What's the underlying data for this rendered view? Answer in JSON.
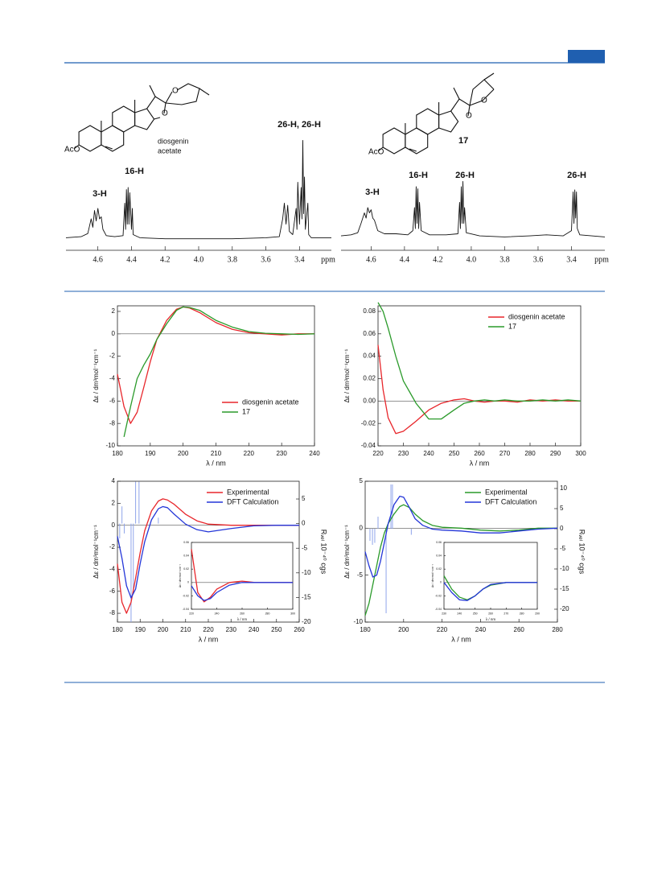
{
  "structures": [
    {
      "atoms": [
        "AcO",
        "O",
        "O"
      ],
      "name_lines": [
        "diosgenin",
        "acetate"
      ]
    },
    {
      "atoms": [
        "AcO",
        "O",
        "O"
      ],
      "name": "17"
    }
  ],
  "chart_data": [
    {
      "type": "line",
      "x_label": "ppm",
      "xlim": [
        4.79,
        3.21
      ],
      "ylim": [
        0,
        1
      ],
      "xticks": [
        4.6,
        4.4,
        4.2,
        {
          "value": 4,
          "label": "4.0"
        },
        3.8,
        3.6,
        3.4
      ],
      "annotations": [
        "3-H",
        "16-H",
        "26-H, 26-H"
      ],
      "x": [
        4.79,
        4.7,
        4.66,
        4.64,
        4.63,
        4.62,
        4.61,
        4.6,
        4.59,
        4.58,
        4.57,
        4.55,
        4.5,
        4.45,
        4.44,
        4.435,
        4.43,
        4.425,
        4.42,
        4.415,
        4.41,
        4.4,
        4.395,
        4.39,
        4.35,
        4.2,
        4.0,
        3.8,
        3.6,
        3.52,
        3.5,
        3.49,
        3.48,
        3.47,
        3.46,
        3.44,
        3.42,
        3.415,
        3.41,
        3.4,
        3.39,
        3.385,
        3.38,
        3.375,
        3.37,
        3.365,
        3.35,
        3.345,
        3.33,
        3.21
      ],
      "series": [
        {
          "color": "#111111",
          "values": [
            0.02,
            0.03,
            0.06,
            0.2,
            0.12,
            0.28,
            0.18,
            0.3,
            0.2,
            0.22,
            0.1,
            0.04,
            0.03,
            0.04,
            0.35,
            0.1,
            0.48,
            0.15,
            0.5,
            0.15,
            0.45,
            0.1,
            0.3,
            0.05,
            0.02,
            0.01,
            0.01,
            0.01,
            0.02,
            0.03,
            0.2,
            0.35,
            0.15,
            0.33,
            0.08,
            0.05,
            0.3,
            0.1,
            0.55,
            0.15,
            0.5,
            0.2,
            0.95,
            0.25,
            0.6,
            0.1,
            0.35,
            0.05,
            0.02,
            0.02
          ]
        }
      ]
    },
    {
      "type": "line",
      "x_label": "ppm",
      "xlim": [
        4.78,
        3.2
      ],
      "ylim": [
        0,
        1
      ],
      "xticks": [
        4.6,
        4.4,
        4.2,
        {
          "value": 4,
          "label": "4.0"
        },
        3.8,
        3.6,
        3.4
      ],
      "annotations": [
        "3-H",
        "16-H",
        "26-H",
        "26-H"
      ],
      "x": [
        4.78,
        4.72,
        4.68,
        4.66,
        4.64,
        4.63,
        4.62,
        4.61,
        4.6,
        4.59,
        4.58,
        4.56,
        4.52,
        4.45,
        4.38,
        4.35,
        4.34,
        4.335,
        4.33,
        4.325,
        4.32,
        4.315,
        4.31,
        4.3,
        4.25,
        4.15,
        4.08,
        4.07,
        4.065,
        4.06,
        4.055,
        4.05,
        4.045,
        4.04,
        4.03,
        3.95,
        3.8,
        3.65,
        3.55,
        3.45,
        3.4,
        3.39,
        3.385,
        3.38,
        3.375,
        3.37,
        3.365,
        3.35,
        3.2
      ],
      "series": [
        {
          "color": "#111111",
          "values": [
            0.03,
            0.04,
            0.06,
            0.15,
            0.25,
            0.2,
            0.3,
            0.25,
            0.28,
            0.2,
            0.18,
            0.08,
            0.05,
            0.05,
            0.04,
            0.08,
            0.3,
            0.1,
            0.5,
            0.15,
            0.48,
            0.1,
            0.35,
            0.08,
            0.04,
            0.04,
            0.05,
            0.35,
            0.1,
            0.5,
            0.15,
            0.55,
            0.15,
            0.3,
            0.06,
            0.03,
            0.02,
            0.03,
            0.04,
            0.03,
            0.08,
            0.45,
            0.15,
            0.47,
            0.2,
            0.45,
            0.1,
            0.04,
            0.02
          ]
        }
      ]
    },
    {
      "type": "line",
      "frame": true,
      "zero_line": true,
      "legend": "lower right",
      "x_label": "λ / nm",
      "y_label": "Δε / dm³mol⁻¹cm⁻¹",
      "xlim": [
        180,
        240
      ],
      "xticks": [
        180,
        190,
        200,
        210,
        220,
        230,
        240
      ],
      "ylim": [
        -10,
        2.5
      ],
      "yticks": [
        -10,
        -8,
        -6,
        -4,
        -2,
        0,
        2
      ],
      "x": [
        180,
        182,
        184,
        186,
        188,
        190,
        192,
        195,
        198,
        200,
        202,
        205,
        210,
        215,
        220,
        225,
        230,
        235,
        240
      ],
      "series": [
        {
          "name": "diosgenin acetate",
          "color": "#e8262b",
          "values": [
            -3.6,
            -6.5,
            -8,
            -7,
            -4.8,
            -2.5,
            -0.5,
            1.2,
            2.2,
            2.4,
            2.3,
            1.9,
            1.0,
            0.4,
            0.1,
            0,
            -0.1,
            0,
            0
          ]
        },
        {
          "name": "17",
          "color": "#2a9a2a",
          "values": [
            null,
            -9.2,
            -6.5,
            -4,
            -2.8,
            -1.8,
            -0.5,
            0.9,
            2.1,
            2.4,
            2.35,
            2.1,
            1.2,
            0.6,
            0.2,
            0.05,
            0,
            -0.05,
            0
          ]
        }
      ]
    },
    {
      "type": "line",
      "frame": true,
      "zero_line": true,
      "legend": "upper right",
      "x_label": "λ / nm",
      "y_label": "Δε / dm³mol⁻¹cm⁻¹",
      "xlim": [
        220,
        300
      ],
      "xticks": [
        220,
        230,
        240,
        250,
        260,
        270,
        280,
        290,
        300
      ],
      "ylim": [
        -0.04,
        0.085
      ],
      "yticks": [
        -0.04,
        -0.02,
        {
          "value": 0,
          "label": "0.00"
        },
        0.02,
        0.04,
        0.06,
        0.08
      ],
      "x": [
        220,
        222,
        224,
        227,
        230,
        235,
        240,
        245,
        250,
        254,
        258,
        262,
        266,
        270,
        275,
        280,
        285,
        290,
        295,
        300
      ],
      "series": [
        {
          "name": "diosgenin acetate",
          "color": "#e8262b",
          "values": [
            0.05,
            0.01,
            -0.015,
            -0.029,
            -0.027,
            -0.018,
            -0.008,
            -0.002,
            0.001,
            0.002,
            0,
            -0.001,
            0,
            0,
            -0.001,
            0.001,
            0,
            0.001,
            0,
            0
          ]
        },
        {
          "name": "17",
          "color": "#2a9a2a",
          "values": [
            0.088,
            0.08,
            0.065,
            0.04,
            0.018,
            -0.002,
            -0.016,
            -0.016,
            -0.008,
            -0.002,
            0,
            0.001,
            0,
            0.001,
            0,
            0,
            0.001,
            0,
            0.001,
            0
          ]
        }
      ]
    },
    {
      "type": "line",
      "frame": true,
      "zero_line": true,
      "legend": "upper right",
      "x_label": "λ / nm",
      "y_label": "Δε / dm³mol⁻¹cm⁻¹",
      "y2_label": "Rᵥₑₗ 10⁻⁴⁰ cgs",
      "xlim": [
        180,
        260
      ],
      "xticks": [
        180,
        190,
        200,
        210,
        220,
        230,
        240,
        250,
        260
      ],
      "ylim": [
        -8.8,
        4
      ],
      "yticks": [
        -8,
        -6,
        -4,
        -2,
        0,
        2,
        4
      ],
      "y2lim": [
        -20,
        8.6
      ],
      "y2ticks": [
        -20,
        -15,
        -10,
        -5,
        0,
        5
      ],
      "x": [
        180,
        182,
        184,
        186,
        188,
        190,
        192,
        195,
        198,
        200,
        202,
        205,
        210,
        215,
        220,
        230,
        240,
        250,
        260
      ],
      "series": [
        {
          "name": "Experimental",
          "color": "#e8262b",
          "values": [
            -3.5,
            -7,
            -8,
            -7,
            -4.8,
            -2.5,
            -0.5,
            1.3,
            2.2,
            2.4,
            2.3,
            1.9,
            1.0,
            0.4,
            0.1,
            0,
            0,
            0,
            0
          ]
        },
        {
          "name": "DFT Calculation",
          "color": "#2436d8",
          "values": [
            -1,
            -3,
            -5.5,
            -6.6,
            -5.8,
            -3.5,
            -1.5,
            0.5,
            1.5,
            1.7,
            1.6,
            1.0,
            0.1,
            -0.4,
            -0.6,
            -0.3,
            -0.05,
            0,
            0
          ]
        }
      ],
      "sticks": {
        "axis": "y2",
        "color": "#8fa4ea",
        "x": [
          181,
          182,
          183,
          186,
          187,
          188,
          189.5,
          198
        ],
        "values": [
          -3,
          3.5,
          -2,
          -20,
          -14,
          8.5,
          8.5,
          1.2
        ]
      },
      "inset": {
        "type": "line",
        "frame": true,
        "zero_line": true,
        "x_label": "λ / nm",
        "y_label": "Δε / dm³mol⁻¹cm⁻¹",
        "xlim": [
          220,
          300
        ],
        "xticks": [
          220,
          240,
          260,
          280,
          300
        ],
        "ylim": [
          -0.04,
          0.06
        ],
        "yticks": [
          -0.04,
          -0.02,
          0,
          0.02,
          0.04,
          0.06
        ],
        "x": [
          220,
          225,
          230,
          235,
          240,
          250,
          260,
          270,
          280,
          290,
          300
        ],
        "series": [
          {
            "color": "#e8262b",
            "values": [
              0.05,
              -0.015,
              -0.029,
              -0.022,
              -0.01,
              0,
              0.002,
              0,
              0,
              0,
              0
            ]
          },
          {
            "color": "#2436d8",
            "values": [
              -0.005,
              -0.02,
              -0.027,
              -0.024,
              -0.015,
              -0.004,
              0,
              0,
              0,
              0,
              0
            ]
          }
        ]
      }
    },
    {
      "type": "line",
      "frame": true,
      "zero_line": true,
      "legend": "upper right",
      "x_label": "λ / nm",
      "y_label": "Δε / dm³mol⁻¹cm⁻¹",
      "y2_label": "Rᵥₑₗ 10⁻⁴⁰ cgs",
      "xlim": [
        180,
        280
      ],
      "xticks": [
        180,
        200,
        220,
        240,
        260,
        280
      ],
      "ylim": [
        -10,
        5
      ],
      "yticks": [
        -10,
        -5,
        0,
        5
      ],
      "y2lim": [
        -23.2,
        11.8
      ],
      "y2ticks": [
        -20,
        -15,
        -10,
        -5,
        0,
        5,
        10
      ],
      "x": [
        180,
        182,
        184,
        186,
        188,
        190,
        192,
        195,
        198,
        200,
        203,
        206,
        210,
        215,
        220,
        230,
        240,
        250,
        260,
        270,
        280
      ],
      "series": [
        {
          "name": "Experimental",
          "color": "#2a9a2a",
          "values": [
            -9.3,
            -8,
            -6,
            -4,
            -2,
            -0.5,
            0.5,
            1.5,
            2.3,
            2.5,
            2.2,
            1.5,
            0.8,
            0.3,
            0.1,
            0,
            -0.2,
            -0.3,
            -0.2,
            0,
            0
          ]
        },
        {
          "name": "DFT Calculation",
          "color": "#2436d8",
          "values": [
            -2.5,
            -4,
            -5.2,
            -5,
            -3.5,
            -1.5,
            0.5,
            2.5,
            3.4,
            3.3,
            2.2,
            1.0,
            0.3,
            -0.1,
            -0.2,
            -0.3,
            -0.5,
            -0.5,
            -0.3,
            -0.1,
            0
          ]
        }
      ],
      "sticks": {
        "axis": "y2",
        "color": "#8fa4ea",
        "x": [
          182.5,
          183.8,
          185,
          186.7,
          190.9,
          193.4,
          194.2,
          204
        ],
        "values": [
          -3,
          -4,
          -3.5,
          3,
          -21,
          11,
          11,
          -1.5
        ]
      },
      "inset": {
        "type": "line",
        "frame": true,
        "zero_line": true,
        "x_label": "λ / nm",
        "y_label": "Δε / dm³mol⁻¹cm⁻¹",
        "xlim": [
          230,
          290
        ],
        "xticks": [
          230,
          240,
          250,
          260,
          270,
          280,
          290
        ],
        "ylim": [
          -0.04,
          0.06
        ],
        "yticks": [
          -0.04,
          -0.02,
          0,
          0.02,
          0.04,
          0.06
        ],
        "x": [
          230,
          235,
          240,
          245,
          250,
          255,
          260,
          270,
          280,
          290
        ],
        "series": [
          {
            "color": "#2a9a2a",
            "values": [
              0.01,
              -0.01,
              -0.022,
              -0.026,
              -0.02,
              -0.01,
              -0.004,
              0,
              0,
              0
            ]
          },
          {
            "color": "#2436d8",
            "values": [
              0,
              -0.015,
              -0.026,
              -0.027,
              -0.02,
              -0.01,
              -0.003,
              0,
              0,
              0
            ]
          }
        ]
      }
    }
  ]
}
